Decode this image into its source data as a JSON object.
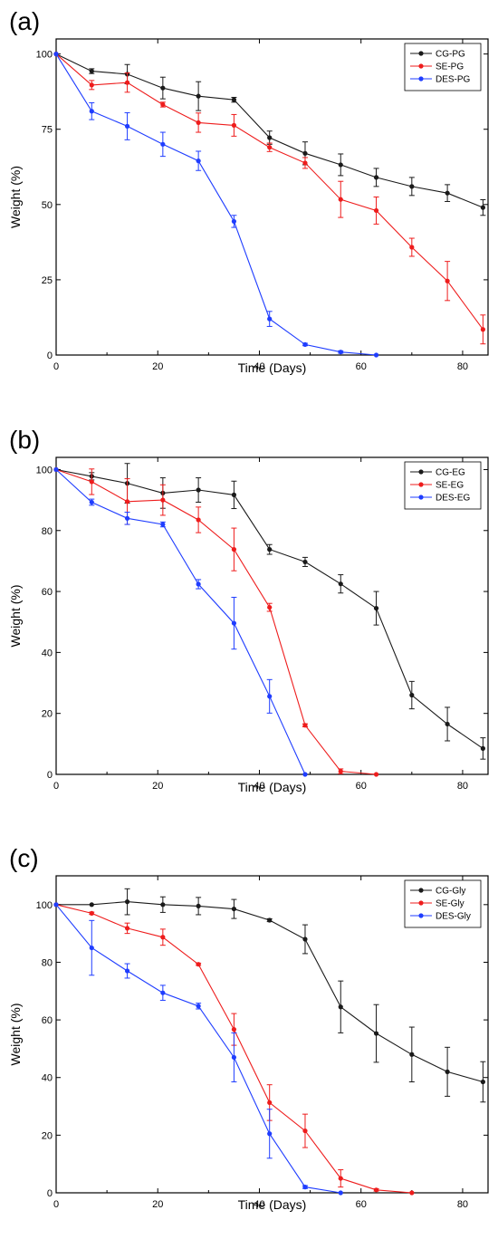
{
  "chart_data": [
    {
      "panel": "(a)",
      "type": "line",
      "xlabel": "Time (Days)",
      "ylabel": "Weight (%)",
      "xlim": [
        0,
        85
      ],
      "ylim": [
        0,
        105
      ],
      "xticks": [
        0,
        20,
        40,
        60,
        80
      ],
      "yticks": [
        0,
        25,
        50,
        75,
        100
      ],
      "legend_position": "top-right",
      "series": [
        {
          "name": "CG-PG",
          "color": "#1a1a1a",
          "points": [
            [
              0,
              100
            ],
            [
              7,
              94.3
            ],
            [
              14,
              93.3
            ],
            [
              21,
              88.7
            ],
            [
              28,
              86
            ],
            [
              35,
              84.8
            ],
            [
              42,
              72.2
            ],
            [
              49,
              67
            ],
            [
              56,
              63.2
            ],
            [
              63,
              59
            ],
            [
              70,
              56
            ],
            [
              77,
              53.8
            ],
            [
              84,
              49
            ]
          ],
          "errors": [
            0,
            0.8,
            3.2,
            3.6,
            4.8,
            0.8,
            2.2,
            3.8,
            3.6,
            3,
            3,
            2.8,
            2.6
          ]
        },
        {
          "name": "SE-PG",
          "color": "#ee1c1c",
          "points": [
            [
              0,
              100
            ],
            [
              7,
              89.7
            ],
            [
              14,
              90.5
            ],
            [
              21,
              83.2
            ],
            [
              28,
              77.2
            ],
            [
              35,
              76.3
            ],
            [
              42,
              69
            ],
            [
              49,
              63.8
            ],
            [
              56,
              51.7
            ],
            [
              63,
              48
            ],
            [
              70,
              35.8
            ],
            [
              77,
              24.6
            ],
            [
              84,
              8.5
            ]
          ],
          "errors": [
            0,
            1.5,
            3.2,
            0.8,
            3.2,
            3.6,
            1.4,
            1.8,
            6,
            4.5,
            3,
            6.5,
            4.8
          ]
        },
        {
          "name": "DES-PG",
          "color": "#1f3dff",
          "points": [
            [
              0,
              100
            ],
            [
              7,
              81
            ],
            [
              14,
              76
            ],
            [
              21,
              70
            ],
            [
              28,
              64.5
            ],
            [
              35,
              44.4
            ],
            [
              42,
              12
            ],
            [
              49,
              3.5
            ],
            [
              56,
              1
            ],
            [
              63,
              0
            ]
          ],
          "errors": [
            0,
            2.8,
            4.5,
            4,
            3.2,
            2,
            2.5,
            0.4,
            0.4,
            0
          ]
        }
      ]
    },
    {
      "panel": "(b)",
      "type": "line",
      "xlabel": "Time (Days)",
      "ylabel": "Weight (%)",
      "xlim": [
        0,
        85
      ],
      "ylim": [
        0,
        104
      ],
      "xticks": [
        0,
        20,
        40,
        60,
        80
      ],
      "yticks": [
        0,
        20,
        40,
        60,
        80,
        100
      ],
      "legend_position": "top-right",
      "series": [
        {
          "name": "CG-EG",
          "color": "#1a1a1a",
          "points": [
            [
              0,
              100
            ],
            [
              7,
              97.8
            ],
            [
              14,
              95.5
            ],
            [
              21,
              92.3
            ],
            [
              28,
              93.3
            ],
            [
              35,
              91.7
            ],
            [
              42,
              73.8
            ],
            [
              49,
              69.7
            ],
            [
              56,
              62.5
            ],
            [
              63,
              54.5
            ],
            [
              70,
              26
            ],
            [
              77,
              16.5
            ],
            [
              84,
              8.5
            ]
          ],
          "errors": [
            0,
            1.2,
            6.5,
            5,
            4,
            4.5,
            1.6,
            1.5,
            3,
            5.5,
            4.5,
            5.5,
            3.5
          ]
        },
        {
          "name": "SE-EG",
          "color": "#ee1c1c",
          "points": [
            [
              0,
              100
            ],
            [
              7,
              96
            ],
            [
              14,
              89.5
            ],
            [
              21,
              90
            ],
            [
              28,
              83.5
            ],
            [
              35,
              73.8
            ],
            [
              42,
              54.8
            ],
            [
              49,
              16.1
            ],
            [
              56,
              1
            ],
            [
              63,
              0
            ]
          ],
          "errors": [
            0,
            4.2,
            7.5,
            5,
            4.2,
            7,
            1.3,
            0.5,
            0.8,
            0
          ]
        },
        {
          "name": "DES-EG",
          "color": "#1f3dff",
          "points": [
            [
              0,
              100
            ],
            [
              7,
              89.3
            ],
            [
              14,
              84
            ],
            [
              21,
              82
            ],
            [
              28,
              62.4
            ],
            [
              35,
              49.6
            ],
            [
              42,
              25.6
            ],
            [
              49,
              0
            ]
          ],
          "errors": [
            0,
            1,
            2,
            0.8,
            1.5,
            8.5,
            5.5,
            0
          ]
        }
      ]
    },
    {
      "panel": "(c)",
      "type": "line",
      "xlabel": "Time (Days)",
      "ylabel": "Weight (%)",
      "xlim": [
        0,
        85
      ],
      "ylim": [
        0,
        110
      ],
      "xticks": [
        0,
        20,
        40,
        60,
        80
      ],
      "yticks": [
        0,
        20,
        40,
        60,
        80,
        100
      ],
      "legend_position": "top-right",
      "series": [
        {
          "name": "CG-Gly",
          "color": "#1a1a1a",
          "points": [
            [
              0,
              100
            ],
            [
              7,
              100
            ],
            [
              14,
              101
            ],
            [
              21,
              100
            ],
            [
              28,
              99.5
            ],
            [
              35,
              98.5
            ],
            [
              42,
              94.6
            ],
            [
              49,
              88
            ],
            [
              56,
              64.5
            ],
            [
              63,
              55.3
            ],
            [
              70,
              48
            ],
            [
              77,
              42
            ],
            [
              84,
              38.5
            ]
          ],
          "errors": [
            0,
            0,
            4.5,
            2.7,
            3,
            3.3,
            0.5,
            5,
            9,
            10,
            9.5,
            8.5,
            7
          ]
        },
        {
          "name": "SE-Gly",
          "color": "#ee1c1c",
          "points": [
            [
              0,
              100
            ],
            [
              7,
              97
            ],
            [
              14,
              91.8
            ],
            [
              21,
              88.7
            ],
            [
              28,
              79.3
            ],
            [
              35,
              56.7
            ],
            [
              42,
              31.3
            ],
            [
              49,
              21.5
            ],
            [
              56,
              5
            ],
            [
              63,
              1
            ],
            [
              70,
              0
            ]
          ],
          "errors": [
            0,
            0.4,
            1.8,
            2.8,
            0.4,
            5.5,
            6.2,
            5.8,
            3,
            0.4,
            0
          ]
        },
        {
          "name": "DES-Gly",
          "color": "#1f3dff",
          "points": [
            [
              0,
              100
            ],
            [
              7,
              85
            ],
            [
              14,
              77
            ],
            [
              21,
              69.4
            ],
            [
              28,
              64.8
            ],
            [
              35,
              47
            ],
            [
              42,
              20.5
            ],
            [
              49,
              2
            ],
            [
              56,
              0
            ]
          ],
          "errors": [
            0,
            9.5,
            2.5,
            2.6,
            1,
            8.5,
            8.5,
            0.5,
            0
          ]
        }
      ]
    }
  ]
}
